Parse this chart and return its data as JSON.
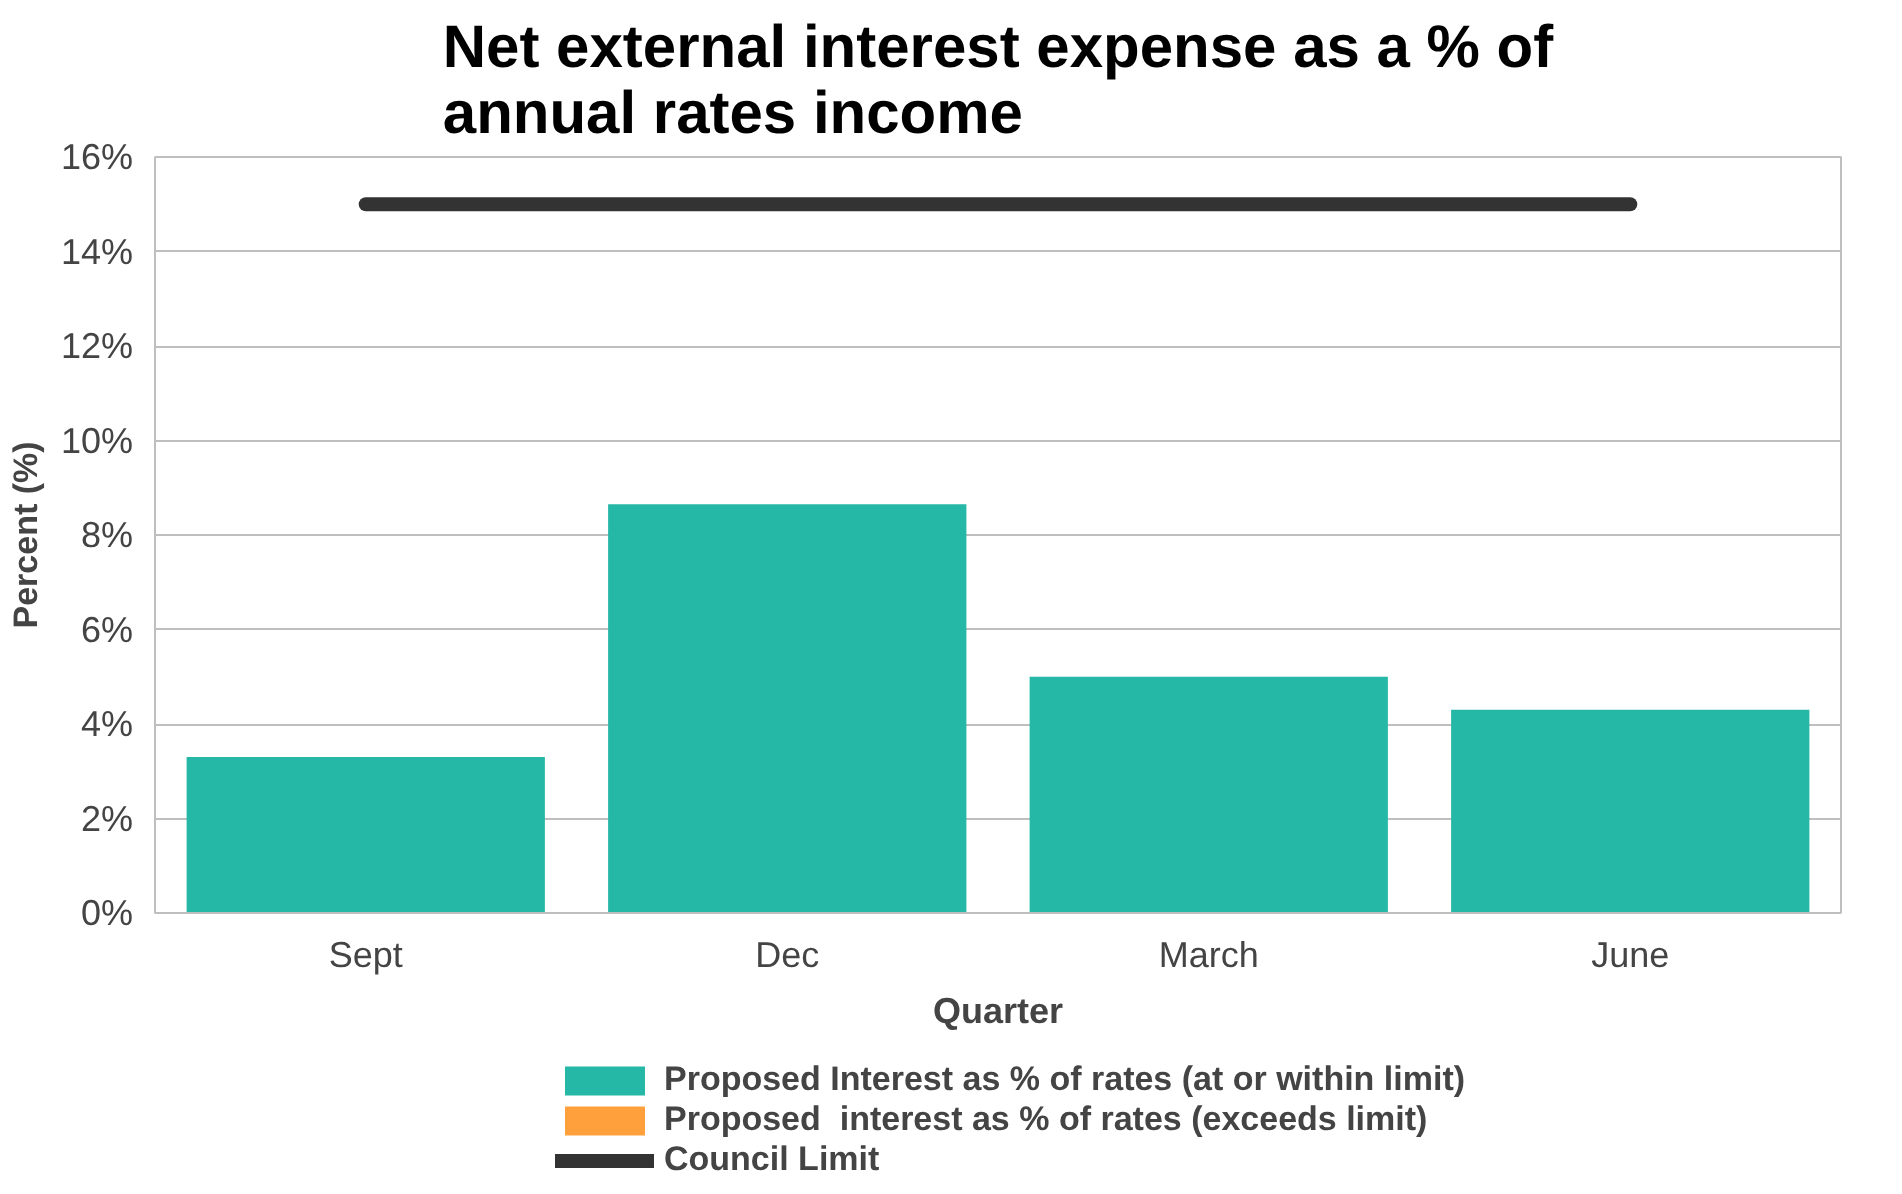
{
  "chart_data": {
    "type": "bar",
    "title": "Net external interest expense as a % of annual rates income",
    "xlabel": "Quarter",
    "ylabel": "Percent (%)",
    "categories": [
      "Sept",
      "Dec",
      "March",
      "June"
    ],
    "series": [
      {
        "name": "Proposed Interest as % of rates (at or within limit)",
        "color": "#25b8a7",
        "values": [
          3.3,
          8.65,
          5.0,
          4.3
        ]
      },
      {
        "name": "Proposed  interest as % of rates (exceeds limit)",
        "color": "#ffa03c",
        "values": [
          null,
          null,
          null,
          null
        ]
      },
      {
        "name": "Council Limit",
        "type": "line",
        "color": "#333333",
        "values": [
          15,
          15,
          15,
          15
        ]
      }
    ],
    "ylim": [
      0,
      16
    ],
    "yticks": [
      {
        "value": 0,
        "label": "0%"
      },
      {
        "value": 2,
        "label": "2%"
      },
      {
        "value": 4,
        "label": "4%"
      },
      {
        "value": 6,
        "label": "6%"
      },
      {
        "value": 8,
        "label": "8%"
      },
      {
        "value": 10,
        "label": "10%"
      },
      {
        "value": 12,
        "label": "12%"
      },
      {
        "value": 14,
        "label": "14%"
      },
      {
        "value": 16,
        "label": "16%"
      }
    ],
    "grid": "y",
    "legend": "bottom"
  }
}
